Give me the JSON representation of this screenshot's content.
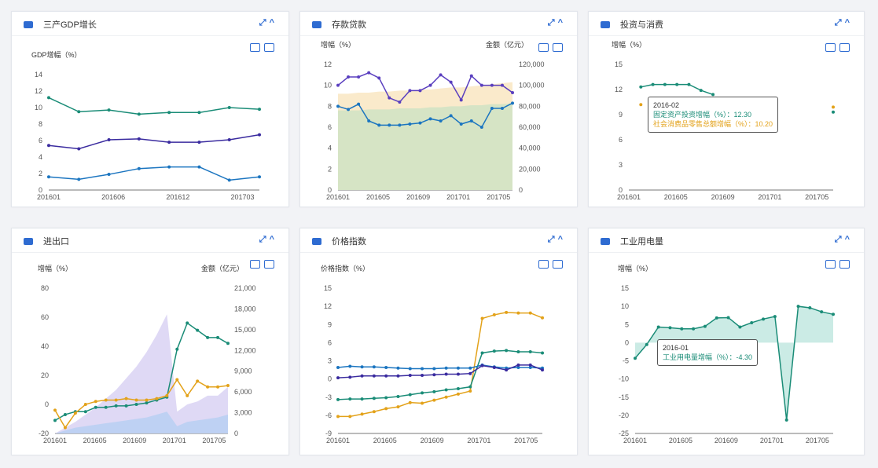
{
  "panels": [
    {
      "title": "三产GDP增长",
      "icon": "gdp-icon"
    },
    {
      "title": "存款贷款",
      "icon": "deposit-icon"
    },
    {
      "title": "投资与消费",
      "icon": "investment-icon"
    },
    {
      "title": "进出口",
      "icon": "trade-icon"
    },
    {
      "title": "价格指数",
      "icon": "price-icon"
    },
    {
      "title": "工业用电量",
      "icon": "power-icon"
    }
  ],
  "controls": {
    "expand": "⤢",
    "collapse": "^"
  },
  "tooltips": {
    "investment": {
      "date": "2016-02",
      "line1": "固定资产投资增幅（%）：12.30",
      "line2": "社会消费品零售总额增幅（%）：10.20"
    },
    "power": {
      "date": "2016-01",
      "line1": "工业用电量增幅（%）：-4.30"
    }
  },
  "chart_data": [
    {
      "type": "line",
      "ylabel": "GDP增幅（%）",
      "yticks": [
        0,
        2,
        4,
        6,
        8,
        10,
        12,
        14
      ],
      "ylim": [
        0,
        14
      ],
      "xticks": [
        "201601",
        "201606",
        "201612",
        "201703"
      ],
      "series": [
        {
          "name": "",
          "color": "#1a8c77",
          "values": [
            11.2,
            9.5,
            9.7,
            9.2,
            9.4,
            9.4,
            10.0,
            9.8
          ]
        },
        {
          "name": "",
          "color": "#3a2b9f",
          "values": [
            5.4,
            5.0,
            6.1,
            6.2,
            5.8,
            5.8,
            6.1,
            6.7
          ]
        },
        {
          "name": "",
          "color": "#1b75c0",
          "values": [
            1.6,
            1.3,
            1.9,
            2.6,
            2.8,
            2.8,
            1.2,
            1.6
          ]
        }
      ]
    },
    {
      "type": "line",
      "ylabel": "增幅（%）",
      "y2label": "金额（亿元）",
      "yticks": [
        0,
        2,
        4,
        6,
        8,
        10,
        12
      ],
      "ylim": [
        0,
        12
      ],
      "y2ticks": [
        "0",
        "20,000",
        "40,000",
        "60,000",
        "80,000",
        "100,000",
        "120,000"
      ],
      "xticks": [
        "201601",
        "201605",
        "201609",
        "201701",
        "201705"
      ],
      "series": [
        {
          "name": "",
          "color": "#5a3fbf",
          "values": [
            10,
            10.8,
            10.8,
            11.2,
            10.7,
            8.8,
            8.4,
            9.5,
            9.5,
            10,
            11,
            10.3,
            8.6,
            10.9,
            10,
            10,
            10,
            9.3
          ]
        },
        {
          "name": "",
          "color": "#1b75c0",
          "values": [
            8,
            7.7,
            8.2,
            6.6,
            6.2,
            6.2,
            6.2,
            6.3,
            6.4,
            6.8,
            6.6,
            7.1,
            6.3,
            6.6,
            6.0,
            7.8,
            7.8,
            8.3
          ]
        }
      ],
      "areas": [
        {
          "color": "#f9e6c2",
          "values": [
            9.2,
            9.2,
            9.3,
            9.3,
            9.4,
            9.4,
            9.5,
            9.5,
            9.6,
            9.6,
            9.7,
            9.8,
            9.8,
            9.9,
            10,
            10.1,
            10.2,
            10.3
          ]
        },
        {
          "color": "#cfe3c4",
          "values": [
            7.6,
            7.6,
            7.6,
            7.7,
            7.7,
            7.7,
            7.8,
            7.8,
            7.8,
            7.9,
            7.9,
            8,
            8,
            8.1,
            8.1,
            8.2,
            8.2,
            8.3
          ]
        }
      ]
    },
    {
      "type": "line",
      "ylabel": "增幅（%）",
      "yticks": [
        0,
        3,
        6,
        9,
        12,
        15
      ],
      "ylim": [
        0,
        15
      ],
      "xticks": [
        "201601",
        "201605",
        "201609",
        "201701",
        "201705"
      ],
      "series": [
        {
          "name": "",
          "color": "#1a8c77",
          "values": [
            null,
            12.3,
            12.6,
            12.6,
            12.6,
            12.6,
            11.9,
            11.4,
            null,
            null,
            null,
            null,
            null,
            null,
            null,
            null,
            null,
            9.3
          ]
        },
        {
          "name": "",
          "color": "#e3a21a",
          "values": [
            null,
            10.2,
            null,
            null,
            null,
            null,
            null,
            null,
            null,
            null,
            null,
            null,
            null,
            null,
            null,
            null,
            null,
            9.9
          ]
        }
      ]
    },
    {
      "type": "line",
      "ylabel": "增幅（%）",
      "y2label": "金额（亿元）",
      "yticks": [
        -20,
        0,
        20,
        40,
        60,
        80
      ],
      "ylim": [
        -20,
        80
      ],
      "y2ticks": [
        "0",
        "3,000",
        "6,000",
        "9,000",
        "12,000",
        "15,000",
        "18,000",
        "21,000"
      ],
      "xticks": [
        "201601",
        "201605",
        "201609",
        "201701",
        "201705"
      ],
      "series": [
        {
          "name": "",
          "color": "#1a8c77",
          "values": [
            -11,
            -7,
            -5,
            -5,
            -2,
            -2,
            -1,
            -1,
            0,
            1,
            3,
            5,
            38,
            56,
            51,
            46,
            46,
            42
          ]
        },
        {
          "name": "",
          "color": "#e3a21a",
          "values": [
            -4,
            -16,
            -6,
            0,
            2,
            3,
            3,
            4,
            3,
            3,
            4,
            6,
            17,
            6,
            16,
            12,
            12,
            13
          ]
        }
      ],
      "areas": [
        {
          "color": "#d9d2f3",
          "values": [
            -20,
            -16,
            -12,
            -7,
            -2,
            4,
            10,
            18,
            26,
            36,
            48,
            62,
            -5,
            0,
            2,
            6,
            6,
            12
          ]
        },
        {
          "color": "#b9cff2",
          "values": [
            -20,
            -18,
            -16,
            -15,
            -14,
            -13,
            -12,
            -11,
            -10,
            -9,
            -7,
            -5,
            -15,
            -12,
            -11,
            -10,
            -9,
            -7
          ]
        }
      ]
    },
    {
      "type": "line",
      "ylabel": "价格指数（%）",
      "yticks": [
        -9,
        -6,
        -3,
        0,
        3,
        6,
        9,
        12,
        15
      ],
      "ylim": [
        -9,
        15
      ],
      "xticks": [
        "201601",
        "201605",
        "201609",
        "201701",
        "201705"
      ],
      "series": [
        {
          "name": "",
          "color": "#e3a21a",
          "values": [
            -6.2,
            -6.2,
            -5.8,
            -5.4,
            -4.9,
            -4.6,
            -3.9,
            -4,
            -3.5,
            -3,
            -2.5,
            -2,
            10,
            10.6,
            11,
            10.9,
            10.9,
            10.1
          ]
        },
        {
          "name": "",
          "color": "#1a8c77",
          "values": [
            -3.4,
            -3.3,
            -3.3,
            -3.2,
            -3.1,
            -2.9,
            -2.6,
            -2.3,
            -2.1,
            -1.8,
            -1.6,
            -1.3,
            4.3,
            4.6,
            4.7,
            4.5,
            4.5,
            4.3
          ]
        },
        {
          "name": "",
          "color": "#1b75c0",
          "values": [
            1.9,
            2.1,
            2.0,
            2.0,
            1.9,
            1.8,
            1.7,
            1.7,
            1.7,
            1.8,
            1.8,
            1.8,
            2.3,
            2.0,
            1.8,
            1.9,
            1.9,
            1.8
          ]
        },
        {
          "name": "",
          "color": "#3a2b9f",
          "values": [
            0.2,
            0.3,
            0.5,
            0.5,
            0.5,
            0.5,
            0.6,
            0.6,
            0.7,
            0.8,
            0.8,
            0.9,
            2.2,
            1.9,
            1.5,
            2.3,
            2.3,
            1.5
          ]
        }
      ]
    },
    {
      "type": "area",
      "ylabel": "增幅（%）",
      "yticks": [
        -25,
        -20,
        -15,
        -10,
        -5,
        0,
        5,
        10,
        15
      ],
      "ylim": [
        -25,
        15
      ],
      "xticks": [
        "201601",
        "201605",
        "201609",
        "201701",
        "201705"
      ],
      "series": [
        {
          "name": "",
          "color": "#1a8c77",
          "values": [
            -4.3,
            -0.5,
            4.3,
            4.1,
            3.8,
            3.8,
            4.5,
            6.8,
            6.9,
            4.3,
            5.5,
            6.5,
            7.2,
            -21.3,
            10,
            9.6,
            8.5,
            7.8
          ]
        }
      ]
    }
  ]
}
